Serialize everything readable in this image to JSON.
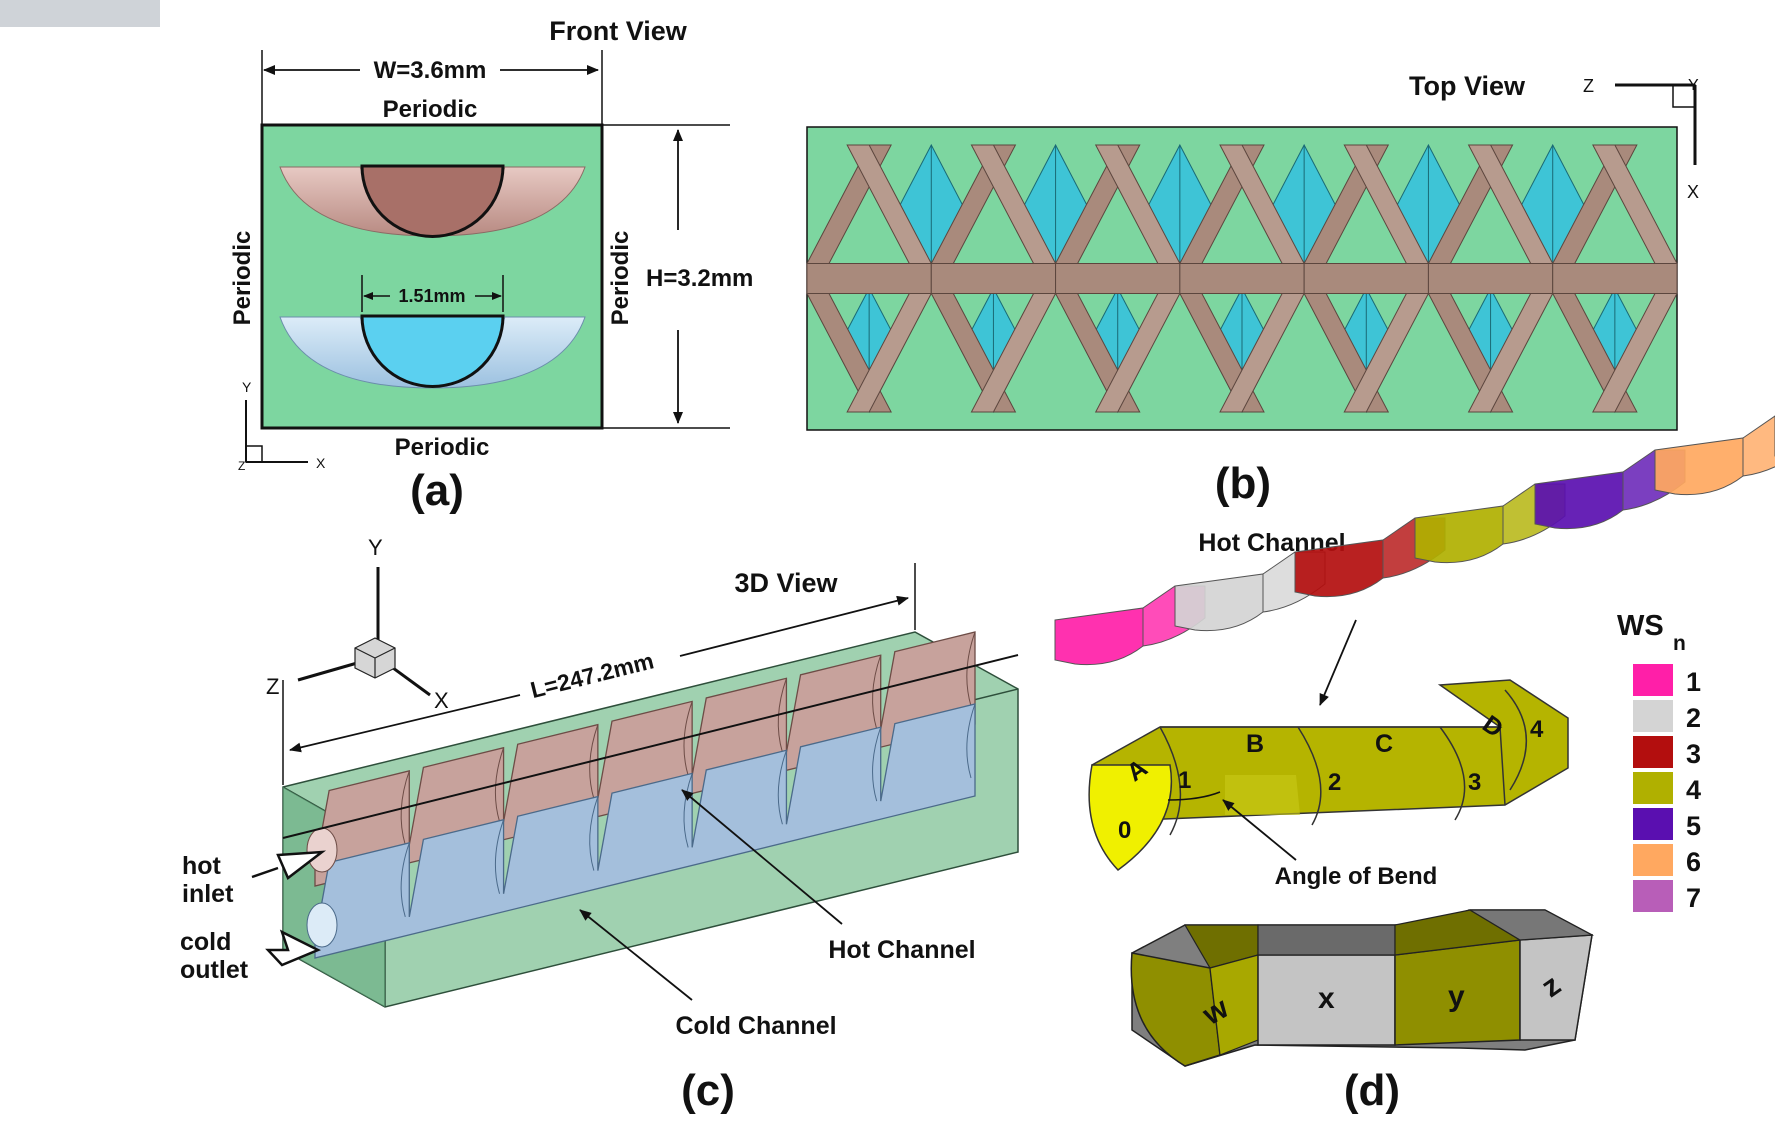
{
  "panels": {
    "a": {
      "letter": "(a)",
      "title": "Front View",
      "width_label": "W=3.6mm",
      "height_label": "H=3.2mm",
      "diameter_label": "1.51mm",
      "periodic_top": "Periodic",
      "periodic_bottom": "Periodic",
      "periodic_left": "Periodic",
      "periodic_right": "Periodic",
      "axis_y": "Y",
      "axis_x": "X",
      "axis_z": "Z"
    },
    "b": {
      "letter": "(b)",
      "title": "Top View",
      "axis_z": "Z",
      "axis_y": "Y",
      "axis_x": "X"
    },
    "c": {
      "letter": "(c)",
      "title": "3D View",
      "length_label": "L=247.2mm",
      "axis_y": "Y",
      "axis_z": "Z",
      "axis_x": "X",
      "hot_inlet_1": "hot",
      "hot_inlet_2": "inlet",
      "cold_outlet_1": "cold",
      "cold_outlet_2": "outlet",
      "hot_channel": "Hot Channel",
      "cold_channel": "Cold Channel"
    },
    "d": {
      "letter": "(d)",
      "hot_channel": "Hot Channel",
      "angle_of_bend": "Angle of Bend",
      "segments": [
        "A",
        "B",
        "C",
        "D"
      ],
      "points": [
        "0",
        "1",
        "2",
        "3",
        "4"
      ],
      "faces": [
        "w",
        "x",
        "y",
        "z"
      ],
      "legend_title": "WS",
      "legend_sub": "n",
      "legend": [
        {
          "label": "1",
          "color": "#ff1fa8"
        },
        {
          "label": "2",
          "color": "#d4d4d4"
        },
        {
          "label": "3",
          "color": "#b30e0e"
        },
        {
          "label": "4",
          "color": "#b0b000"
        },
        {
          "label": "5",
          "color": "#5a0fb0"
        },
        {
          "label": "6",
          "color": "#ffa860"
        },
        {
          "label": "7",
          "color": "#b85eb8"
        }
      ]
    }
  },
  "colors": {
    "domain": "#7dd6a0",
    "hot": "#a87b72",
    "cold": "#5bd0e8",
    "box3d": "#8fc9a2",
    "olive": "#b5b400",
    "gray": "#c4c4c4"
  }
}
